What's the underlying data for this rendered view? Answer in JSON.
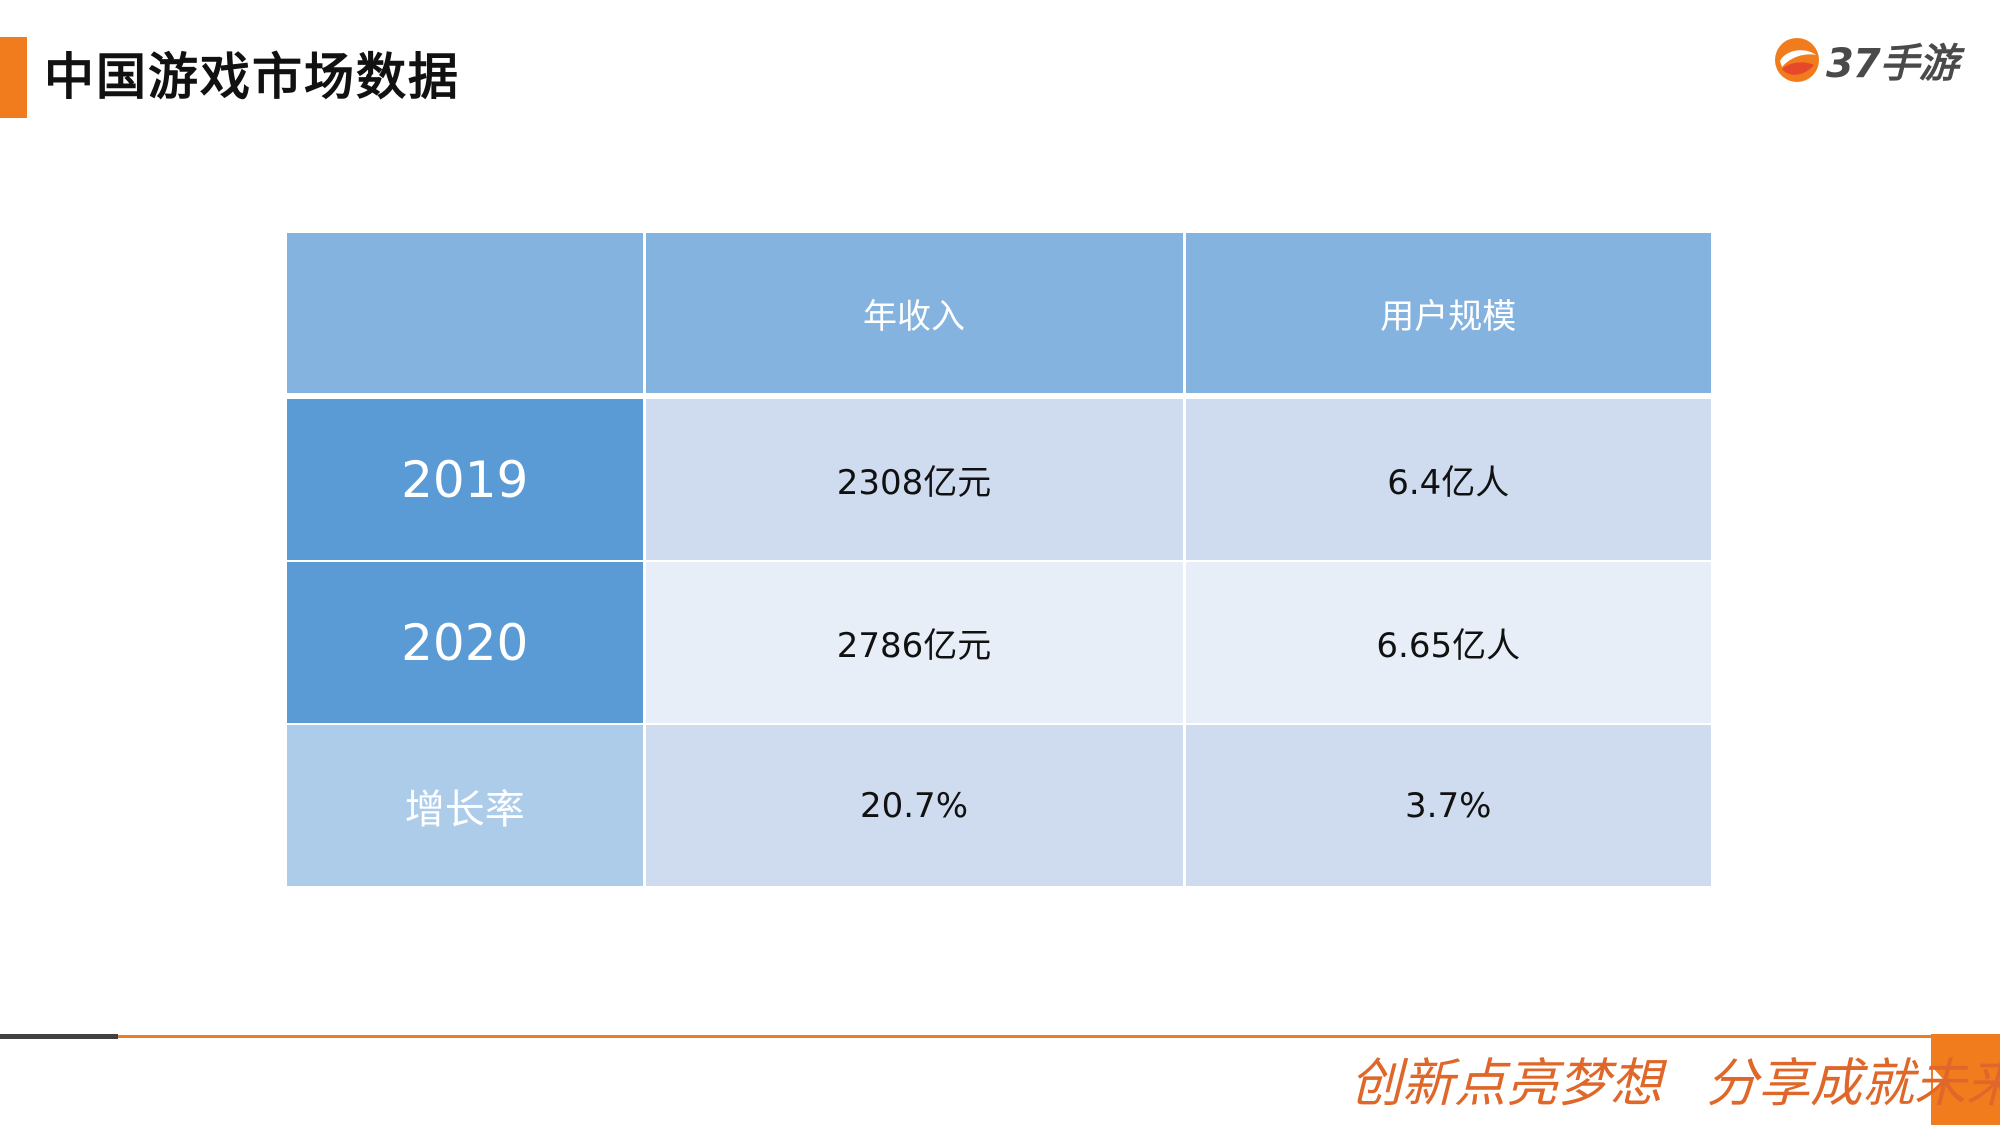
{
  "slide": {
    "title": "中国游戏市场数据"
  },
  "logo": {
    "text": "37手游",
    "colors": {
      "orange": "#f07c1e",
      "red": "#e8482a",
      "text": "#4a4a4a"
    }
  },
  "table": {
    "headers": [
      "",
      "年收入",
      "用户规模"
    ],
    "rows": [
      {
        "label": "2019",
        "revenue": "2308亿元",
        "users": "6.4亿人"
      },
      {
        "label": "2020",
        "revenue": "2786亿元",
        "users": "6.65亿人"
      },
      {
        "label": "增长率",
        "revenue": "20.7%",
        "users": "3.7%"
      }
    ]
  },
  "footer": {
    "slogan_part1": "创新点亮梦想",
    "slogan_part2": "分享成就未来"
  },
  "colors": {
    "accent": "#f07c1e",
    "header_blue": "#85b3e0",
    "year_blue": "#5b9bd5",
    "growth_blue": "#acccea",
    "row_light": "#cfdcef",
    "row_lighter": "#e8eef7",
    "slogan": "#e0672a"
  }
}
